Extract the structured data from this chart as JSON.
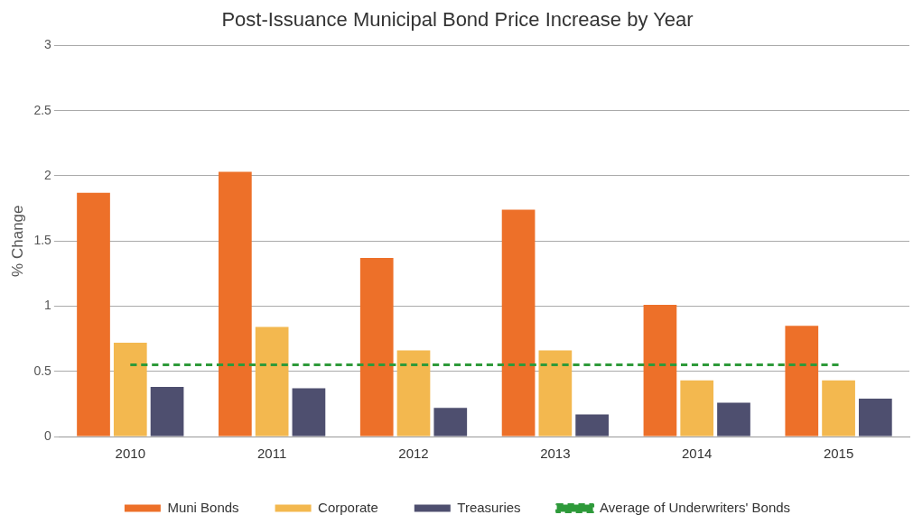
{
  "chart_data": {
    "type": "bar",
    "title": "Post-Issuance Municipal Bond Price Increase by Year",
    "ylabel": "% Change",
    "categories": [
      "2010",
      "2011",
      "2012",
      "2013",
      "2014",
      "2015"
    ],
    "series": [
      {
        "name": "Muni Bonds",
        "color": "#ed7029",
        "values": [
          1.87,
          2.03,
          1.37,
          1.74,
          1.01,
          0.85
        ]
      },
      {
        "name": "Corporate",
        "color": "#f3b84f",
        "values": [
          0.72,
          0.84,
          0.66,
          0.66,
          0.43,
          0.43
        ]
      },
      {
        "name": "Treasuries",
        "color": "#4e4f6f",
        "values": [
          0.38,
          0.37,
          0.22,
          0.17,
          0.26,
          0.29
        ]
      },
      {
        "name": "Average of Underwriters' Bonds",
        "type": "line",
        "color": "#2e9a3a",
        "line_style": "dashed",
        "marker": "none",
        "values": [
          0.55,
          0.55,
          0.55,
          0.55,
          0.55,
          0.55
        ]
      }
    ],
    "ylim": [
      0,
      3
    ],
    "yticks": [
      0,
      0.5,
      1,
      1.5,
      2,
      2.5,
      3
    ],
    "grid": "y",
    "legend": "bottom"
  }
}
